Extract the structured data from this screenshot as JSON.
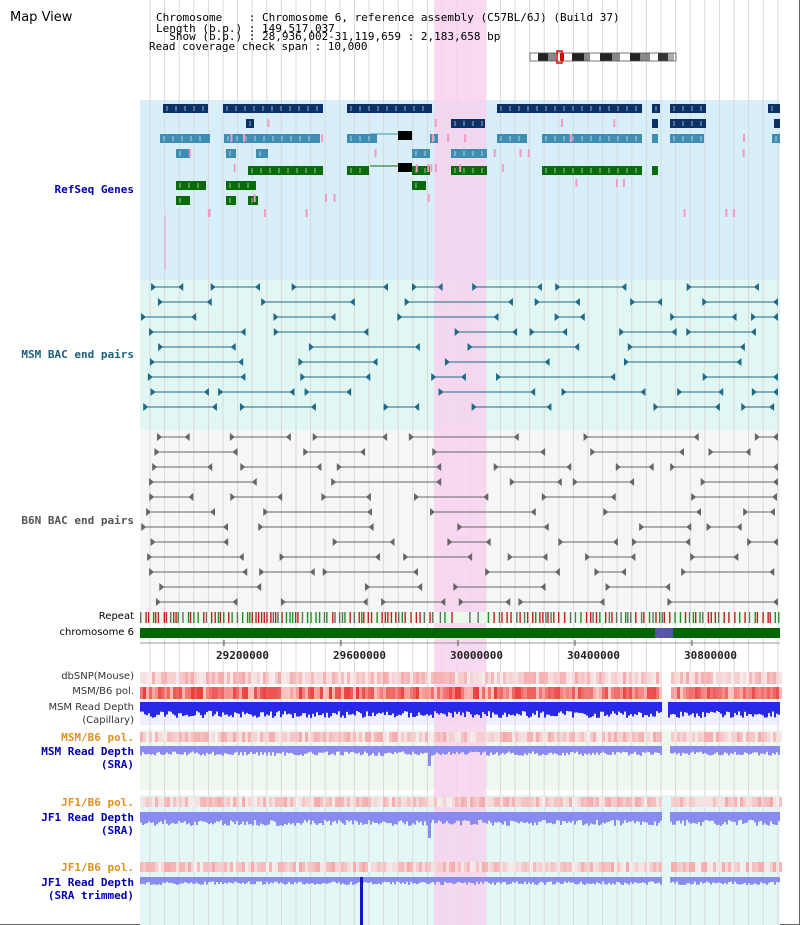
{
  "panel_title": "Map View",
  "info": {
    "line1": "Chromosome    : Chromosome 6, reference assembly (C57BL/6J) (Build 37)",
    "line2": "Length (b.p.) : 149,517,037",
    "line3": "  Show (b.p.) : 28,936,002-31,119,659 : 2,183,658 bp",
    "line4": "Read coverage check span : 10,000"
  },
  "tracks": {
    "refseq": "RefSeq Genes",
    "msm_bac": "MSM BAC end pairs",
    "b6n_bac": "B6N BAC end pairs",
    "repeat": "Repeat",
    "chromosome": "chromosome 6",
    "dbsnp": "dbSNP(Mouse)",
    "msm_b6_pol": "MSM/B6 pol.",
    "msm_depth_cap_1": "MSM Read Depth",
    "msm_depth_cap_2": "(Capillary)",
    "msm_b6_pol_2": "MSM/B6 pol.",
    "msm_depth_sra_1": "MSM Read Depth",
    "msm_depth_sra_2": "(SRA)",
    "jf1_b6_pol": "JF1/B6 pol.",
    "jf1_depth_sra_1": "JF1 Read Depth",
    "jf1_depth_sra_2": "(SRA)",
    "jf1_b6_pol_2": "JF1/B6 pol.",
    "jf1_depth_trim_1": "JF1 Read Depth",
    "jf1_depth_trim_2": "(SRA trimmed)"
  },
  "axis_ticks": [
    "29200000",
    "29600000",
    "30000000",
    "30400000",
    "30800000"
  ],
  "colors": {
    "highlight": "#f7d2ef",
    "refseq_bg": "#d8eef9",
    "msm_bg": "#e0f7f4",
    "b6n_bg": "#f4f6f8",
    "chromosome_bar": "#006600",
    "gene_dark": "#0b3166",
    "gene_mid": "#3f8db3",
    "gene_green": "#0a6b0a",
    "bac_msm": "#1f6a8a",
    "bac_b6n": "#666666",
    "depth_blue": "#2828e6",
    "depth_light": "#8a8af0",
    "label_blue": "#0000aa",
    "label_teal": "#1a5f7f",
    "label_orange": "#e09020"
  }
}
